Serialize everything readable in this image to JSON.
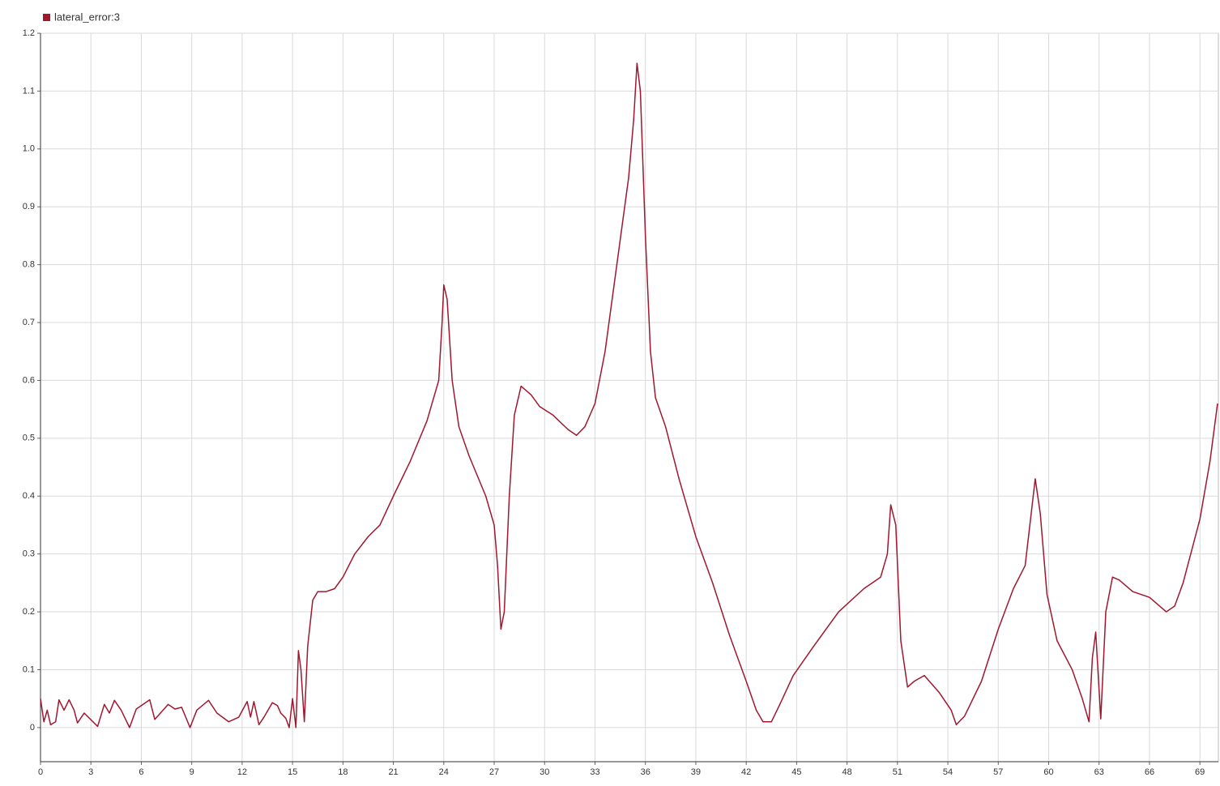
{
  "chart_data": {
    "type": "line",
    "series": [
      {
        "name": "lateral_error:3",
        "color": "#a0172f",
        "values": [
          0.05,
          0.01,
          0.03,
          0.005,
          0.01,
          0.048,
          0.03,
          0.048,
          0.03,
          0.008,
          0.025,
          0.002,
          0.04,
          0.025,
          0.047,
          0.03,
          0.0,
          0.032,
          0.048,
          0.014,
          0.04,
          0.032,
          0.035,
          0.0,
          0.03,
          0.047,
          0.025,
          0.01,
          0.018,
          0.045,
          0.018,
          0.045,
          0.005,
          0.018,
          0.043,
          0.038,
          0.025,
          0.016,
          0.0,
          0.05,
          0.0,
          0.133,
          0.1,
          0.01,
          0.14,
          0.22,
          0.235,
          0.235,
          0.24,
          0.26,
          0.3,
          0.33,
          0.35,
          0.4,
          0.46,
          0.53,
          0.6,
          0.7,
          0.765,
          0.74,
          0.6,
          0.52,
          0.47,
          0.4,
          0.35,
          0.28,
          0.17,
          0.2,
          0.4,
          0.54,
          0.59,
          0.575,
          0.555,
          0.54,
          0.515,
          0.505,
          0.52,
          0.56,
          0.65,
          0.8,
          0.95,
          1.05,
          1.148,
          1.1,
          0.85,
          0.65,
          0.57,
          0.52,
          0.43,
          0.33,
          0.25,
          0.16,
          0.08,
          0.03,
          0.01,
          0.01,
          0.04,
          0.09,
          0.14,
          0.2,
          0.24,
          0.26,
          0.3,
          0.385,
          0.35,
          0.15,
          0.07,
          0.08,
          0.09,
          0.06,
          0.03,
          0.005,
          0.02,
          0.08,
          0.17,
          0.24,
          0.28,
          0.38,
          0.43,
          0.37,
          0.23,
          0.15,
          0.1,
          0.05,
          0.01,
          0.12,
          0.165,
          0.015,
          0.2,
          0.26,
          0.255,
          0.235,
          0.225,
          0.2,
          0.21,
          0.25,
          0.36,
          0.46,
          0.56
        ]
      }
    ],
    "x": [
      0,
      0.2,
      0.4,
      0.6,
      0.9,
      1.1,
      1.4,
      1.7,
      2,
      2.2,
      2.6,
      3.4,
      3.8,
      4.1,
      4.4,
      4.8,
      5.3,
      5.7,
      6.5,
      6.8,
      7.6,
      8,
      8.4,
      8.9,
      9.3,
      10,
      10.5,
      11.2,
      11.8,
      12.3,
      12.5,
      12.7,
      13,
      13.3,
      13.8,
      14.1,
      14.3,
      14.6,
      14.8,
      15,
      15.2,
      15.35,
      15.5,
      15.7,
      15.9,
      16.2,
      16.5,
      17,
      17.5,
      18,
      18.7,
      19.5,
      20.2,
      21,
      22,
      23,
      23.7,
      23.9,
      24,
      24.2,
      24.5,
      24.9,
      25.5,
      26.5,
      27,
      27.2,
      27.4,
      27.6,
      27.9,
      28.2,
      28.6,
      29.2,
      29.7,
      30.5,
      31.4,
      31.9,
      32.4,
      33,
      33.6,
      34.3,
      35,
      35.3,
      35.5,
      35.7,
      36,
      36.3,
      36.6,
      37.2,
      38,
      39,
      40,
      41,
      42,
      42.6,
      43,
      43.5,
      44,
      44.8,
      46,
      47.5,
      49,
      50,
      50.4,
      50.6,
      50.9,
      51.2,
      51.6,
      52,
      52.6,
      53.5,
      54.2,
      54.5,
      55,
      56,
      57,
      57.9,
      58.6,
      59,
      59.2,
      59.5,
      59.9,
      60.5,
      61.4,
      62,
      62.4,
      62.6,
      62.8,
      63.1,
      63.4,
      63.8,
      64.2,
      65,
      66,
      67,
      67.5,
      68,
      69,
      69.6,
      70.05
    ],
    "xlim": [
      0,
      70.1
    ],
    "xticks": [
      0,
      3,
      6,
      9,
      12,
      15,
      18,
      21,
      24,
      27,
      30,
      33,
      36,
      39,
      42,
      45,
      48,
      51,
      54,
      57,
      60,
      63,
      66,
      69
    ],
    "ylim": [
      -0.059,
      1.2
    ],
    "yticks": [
      0,
      0.1,
      0.2,
      0.3,
      0.4,
      0.5,
      0.6,
      0.7,
      0.8,
      0.9,
      {
        "value": 1,
        "label": "1.0"
      },
      1.1,
      1.2
    ],
    "grid": true
  }
}
